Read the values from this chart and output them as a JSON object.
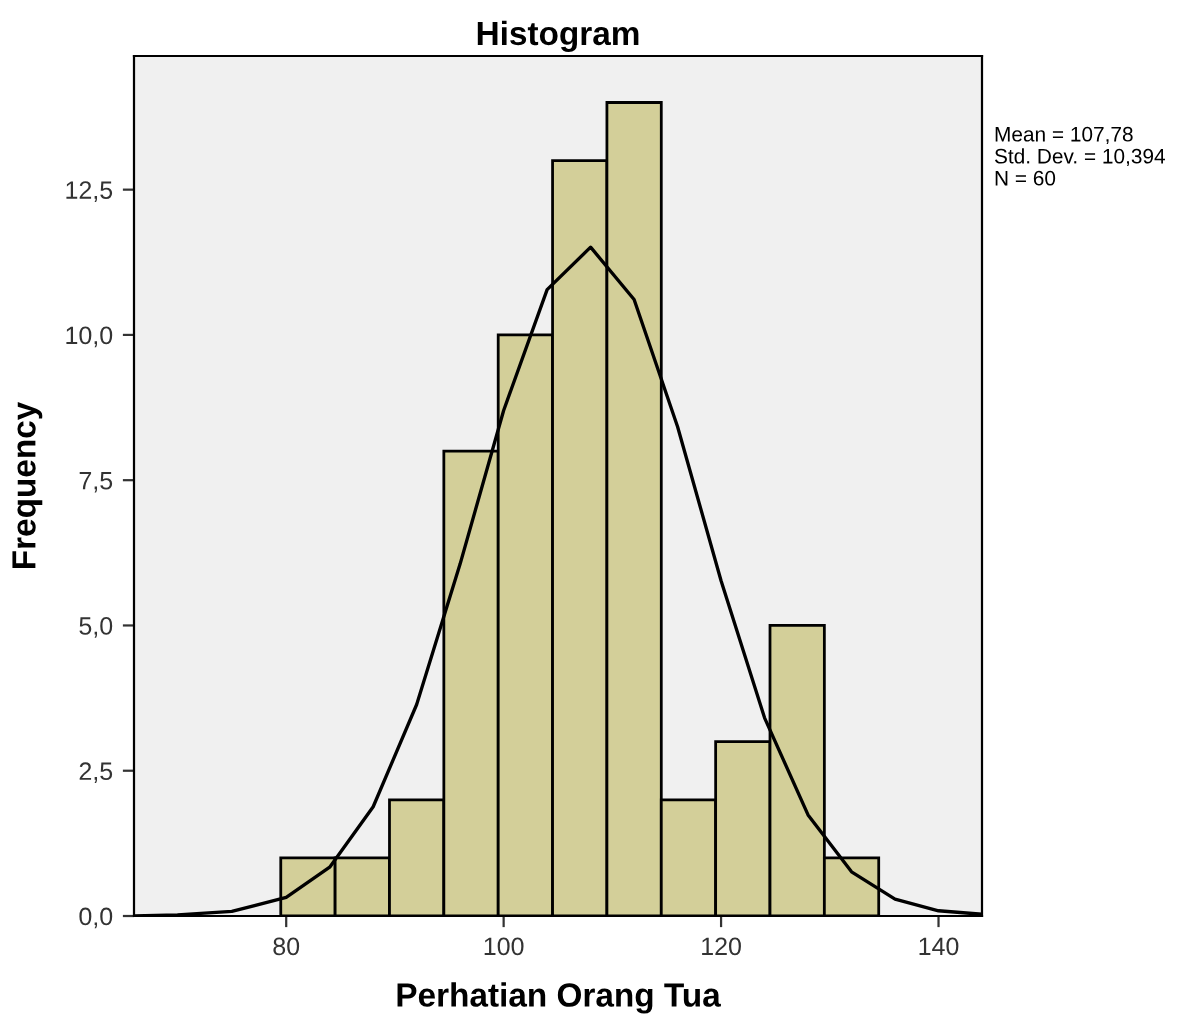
{
  "chart_data": {
    "type": "histogram",
    "title": "Histogram",
    "xlabel": "Perhatian Orang Tua",
    "ylabel": "Frequency",
    "bins": [
      79.5,
      84.5,
      89.5,
      94.5,
      99.5,
      104.5,
      109.5,
      114.5,
      119.5,
      124.5,
      129.5,
      134.5
    ],
    "values": [
      1,
      1,
      2,
      8,
      10,
      13,
      14,
      2,
      3,
      5,
      1
    ],
    "color": "#d3cf99",
    "series": [
      {
        "type": "line",
        "color": "#000000",
        "x": [
          66,
          70,
          75,
          80,
          84,
          88,
          92,
          96,
          100,
          104,
          108,
          112,
          116,
          120,
          124,
          128,
          132,
          136,
          140,
          144
        ],
        "values": [
          0.0,
          0.02,
          0.08,
          0.32,
          0.84,
          1.88,
          3.64,
          6.06,
          8.7,
          10.78,
          11.51,
          10.61,
          8.42,
          5.77,
          3.41,
          1.74,
          0.76,
          0.29,
          0.09,
          0.03
        ]
      }
    ],
    "xlim": [
      66,
      144
    ],
    "xticks": [
      80,
      100,
      120,
      140
    ],
    "ylim": [
      0,
      14.8
    ],
    "yticks": [
      {
        "value": 0,
        "label": "0,0"
      },
      {
        "value": 2.5,
        "label": "2,5"
      },
      {
        "value": 5,
        "label": "5,0"
      },
      {
        "value": 7.5,
        "label": "7,5"
      },
      {
        "value": 10,
        "label": "10,0"
      },
      {
        "value": 12.5,
        "label": "12,5"
      }
    ],
    "annotations": [
      "Mean = 107,78",
      "Std. Dev. = 10,394",
      "N = 60"
    ],
    "grid": false
  }
}
